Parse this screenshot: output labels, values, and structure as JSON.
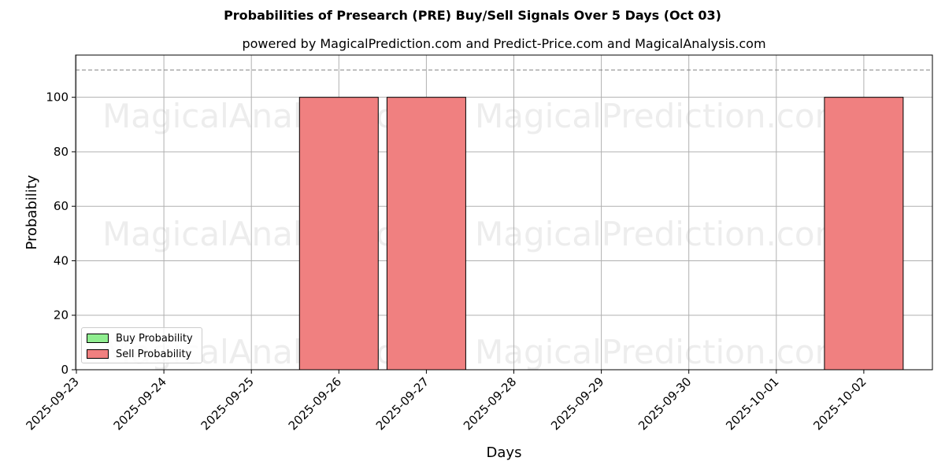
{
  "chart_data": {
    "type": "bar",
    "title": "Probabilities of Presearch (PRE) Buy/Sell Signals Over 5 Days (Oct 03)",
    "subtitle": "powered by MagicalPrediction.com and Predict-Price.com and MagicalAnalysis.com",
    "xlabel": "Days",
    "ylabel": "Probability",
    "ylim": [
      0,
      115.5
    ],
    "y_ticks": [
      0,
      20,
      40,
      60,
      80,
      100
    ],
    "reference_line": 110,
    "grid": true,
    "legend_position": "lower-left",
    "categories": [
      "2025-09-23",
      "2025-09-24",
      "2025-09-25",
      "2025-09-26",
      "2025-09-27",
      "2025-09-28",
      "2025-09-29",
      "2025-09-30",
      "2025-10-01",
      "2025-10-02"
    ],
    "series": [
      {
        "name": "Buy Probability",
        "color": "#90ee90",
        "values": [
          0,
          0,
          0,
          0,
          0,
          0,
          0,
          0,
          0,
          0
        ]
      },
      {
        "name": "Sell Probability",
        "color": "#f08080",
        "values": [
          0,
          0,
          0,
          100,
          100,
          0,
          0,
          0,
          0,
          100
        ]
      }
    ],
    "watermarks": [
      "MagicalAnalysis.com",
      "MagicalPrediction.com"
    ]
  }
}
